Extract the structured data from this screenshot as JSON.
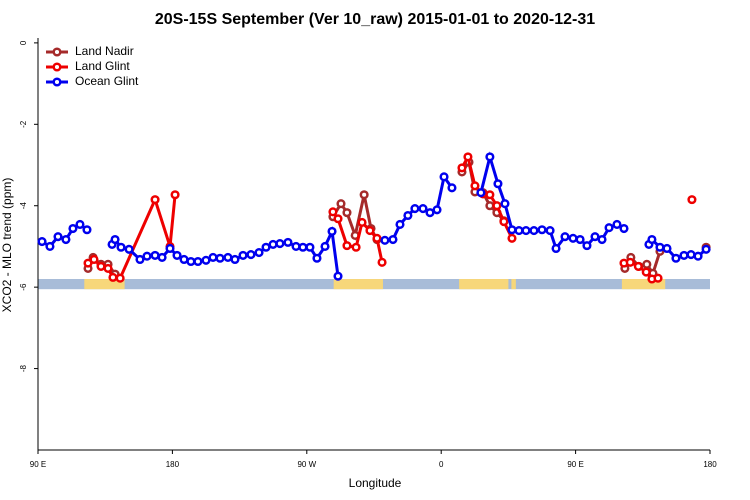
{
  "chart_data": {
    "type": "line",
    "title": "20S-15S September (Ver 10_raw)   2015-01-01 to 2020-12-31",
    "x_label": "Longitude",
    "y_label": "XCO2 - MLO trend (ppm)",
    "xlim": [
      90,
      540
    ],
    "ylim": [
      -10,
      0.12
    ],
    "xticks": [
      {
        "value": 90,
        "label": "90 E"
      },
      {
        "value": 180,
        "label": "180"
      },
      {
        "value": 270,
        "label": "90 W"
      },
      {
        "value": 360,
        "label": "0"
      },
      {
        "value": 450,
        "label": "90 E"
      },
      {
        "value": 540,
        "label": "180"
      }
    ],
    "yticks": [
      0,
      -2,
      -4,
      -6,
      -8
    ],
    "legend": "top-left",
    "surface_mask": {
      "range": [
        -6.05,
        -5.8
      ],
      "ocean_color": "#a8bcd8",
      "land_color": "#f7d77a",
      "land": [
        [
          121,
          148
        ],
        [
          288,
          321
        ],
        [
          372,
          405
        ],
        [
          407,
          410
        ],
        [
          481,
          510
        ]
      ]
    },
    "series": [
      {
        "name": "Land Nadir",
        "color": "#a52a2a",
        "x": [
          123.5,
          126.9,
          132.2,
          136.9,
          141.6,
          200,
          287.5,
          292.9,
          296.9,
          302.4,
          308.4,
          313.0,
          317.0,
          340,
          373.9,
          378.6,
          382.6,
          388.0,
          392.6,
          397.3,
          402.0,
          450,
          483.0,
          487.0,
          492.4,
          497.7,
          501.8,
          506.5,
          520,
          537.4
        ],
        "values": [
          -5.54,
          -5.27,
          -5.44,
          -5.44,
          -5.68,
          null,
          -4.27,
          -3.95,
          -4.17,
          -4.73,
          -3.73,
          -4.56,
          -4.83,
          null,
          -3.17,
          -2.93,
          -3.66,
          -3.68,
          -4.0,
          -4.17,
          -4.37,
          null,
          -5.54,
          -5.27,
          -5.49,
          -5.44,
          -5.66,
          -5.12,
          null,
          -5.02
        ]
      },
      {
        "name": "Land Glint",
        "color": "#ee0000",
        "x": [
          123.5,
          127.5,
          132.2,
          136.9,
          140.2,
          145.0,
          168.4,
          178.4,
          181.8,
          250,
          287.5,
          290.9,
          296.9,
          303.0,
          307.0,
          312.3,
          317.0,
          320.4,
          340,
          373.9,
          377.9,
          382.6,
          388.0,
          392.6,
          397.3,
          402.0,
          407.4,
          450,
          482.4,
          486.6,
          492.0,
          497.3,
          501.1,
          505.2,
          520,
          527.9
        ],
        "values": [
          -5.41,
          -5.32,
          -5.49,
          -5.54,
          -5.76,
          -5.78,
          -3.85,
          -5.0,
          -3.73,
          null,
          -4.15,
          -4.32,
          -4.98,
          -5.02,
          -4.41,
          -4.61,
          -4.8,
          -5.39,
          null,
          -3.07,
          -2.8,
          -3.51,
          -3.71,
          -3.73,
          -4.0,
          -4.39,
          -4.8,
          null,
          -5.41,
          -5.39,
          -5.49,
          -5.63,
          -5.8,
          -5.78,
          null,
          -3.85
        ]
      },
      {
        "name": "Ocean Glint",
        "color": "#0000ee",
        "x": [
          92.7,
          98.0,
          103.4,
          108.7,
          113.4,
          118.1,
          122.8,
          125,
          139.6,
          141.6,
          145.6,
          151.0,
          158.3,
          163.0,
          168.4,
          173.1,
          178.4,
          183.1,
          187.8,
          192.4,
          197.1,
          202.5,
          207.2,
          211.9,
          217.2,
          221.9,
          227.3,
          232.6,
          238.0,
          242.7,
          247.4,
          252.0,
          257.4,
          262.8,
          267.4,
          272.1,
          276.8,
          282.2,
          286.9,
          290.9,
          300,
          322.3,
          327.7,
          332.4,
          337.7,
          342.4,
          347.8,
          352.5,
          357.2,
          361.9,
          367.2,
          370,
          386.6,
          392.6,
          398.0,
          402.7,
          407.4,
          412.1,
          416.8,
          422.1,
          427.5,
          432.9,
          436.9,
          442.9,
          448.3,
          453.0,
          457.6,
          463.0,
          467.7,
          472.4,
          477.7,
          482.4,
          485,
          499.1,
          501.1,
          506.5,
          511.2,
          517.2,
          522.6,
          527.3,
          532.0,
          537.4
        ],
        "values": [
          -4.88,
          -5.0,
          -4.76,
          -4.83,
          -4.56,
          -4.46,
          -4.59,
          null,
          -4.95,
          -4.83,
          -5.02,
          -5.07,
          -5.32,
          -5.24,
          -5.22,
          -5.27,
          -5.05,
          -5.22,
          -5.32,
          -5.37,
          -5.37,
          -5.34,
          -5.27,
          -5.29,
          -5.27,
          -5.32,
          -5.22,
          -5.2,
          -5.15,
          -5.02,
          -4.95,
          -4.93,
          -4.9,
          -5.0,
          -5.02,
          -5.02,
          -5.29,
          -5.0,
          -4.63,
          -5.73,
          null,
          -4.85,
          -4.83,
          -4.46,
          -4.24,
          -4.07,
          -4.07,
          -4.17,
          -4.1,
          -3.29,
          -3.56,
          null,
          -3.68,
          -2.8,
          -3.46,
          -3.95,
          -4.59,
          -4.61,
          -4.61,
          -4.61,
          -4.59,
          -4.61,
          -5.05,
          -4.76,
          -4.8,
          -4.83,
          -4.98,
          -4.76,
          -4.83,
          -4.54,
          -4.46,
          -4.56,
          null,
          -4.95,
          -4.83,
          -5.02,
          -5.05,
          -5.29,
          -5.22,
          -5.2,
          -5.24,
          -5.07
        ]
      }
    ]
  }
}
